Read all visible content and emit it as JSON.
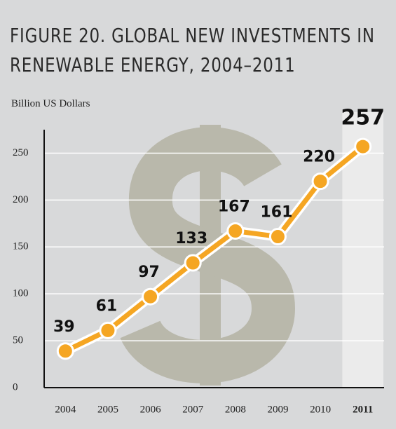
{
  "chart_data": {
    "type": "line",
    "title": "FIGURE 20. GLOBAL NEW INVESTMENTS IN RENEWABLE ENERGY, 2004–2011",
    "y_label": "Billion US Dollars",
    "categories": [
      "2004",
      "2005",
      "2006",
      "2007",
      "2008",
      "2009",
      "2010",
      "2011"
    ],
    "values": [
      39,
      61,
      97,
      133,
      167,
      161,
      220,
      257
    ],
    "color": "#f5a623",
    "highlight": "2011",
    "ylim": [
      0,
      275
    ],
    "yticks": [
      0,
      50,
      100,
      150,
      200,
      250
    ],
    "grid": true
  }
}
